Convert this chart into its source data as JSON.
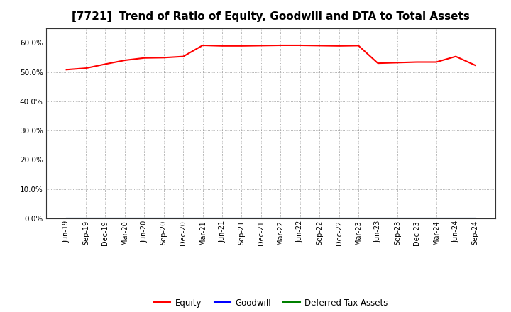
{
  "title": "[7721]  Trend of Ratio of Equity, Goodwill and DTA to Total Assets",
  "x_labels": [
    "Jun-19",
    "Sep-19",
    "Dec-19",
    "Mar-20",
    "Jun-20",
    "Sep-20",
    "Dec-20",
    "Mar-21",
    "Jun-21",
    "Sep-21",
    "Dec-21",
    "Mar-22",
    "Jun-22",
    "Sep-22",
    "Dec-22",
    "Mar-23",
    "Jun-23",
    "Sep-23",
    "Dec-23",
    "Mar-24",
    "Jun-24",
    "Sep-24"
  ],
  "equity": [
    0.508,
    0.513,
    0.527,
    0.54,
    0.548,
    0.549,
    0.553,
    0.591,
    0.589,
    0.589,
    0.59,
    0.591,
    0.591,
    0.59,
    0.589,
    0.59,
    0.53,
    0.532,
    0.534,
    0.534,
    0.553,
    0.523
  ],
  "goodwill": [
    0.0,
    0.0,
    0.0,
    0.0,
    0.0,
    0.0,
    0.0,
    0.0,
    0.0,
    0.0,
    0.0,
    0.0,
    0.0,
    0.0,
    0.0,
    0.0,
    0.0,
    0.0,
    0.0,
    0.0,
    0.0,
    0.0
  ],
  "dta": [
    0.0,
    0.0,
    0.0,
    0.0,
    0.0,
    0.0,
    0.0,
    0.0,
    0.0,
    0.0,
    0.0,
    0.0,
    0.0,
    0.0,
    0.0,
    0.0,
    0.0,
    0.0,
    0.0,
    0.0,
    0.0,
    0.0
  ],
  "equity_color": "#FF0000",
  "goodwill_color": "#0000FF",
  "dta_color": "#008000",
  "ylim": [
    0.0,
    0.65
  ],
  "yticks": [
    0.0,
    0.1,
    0.2,
    0.3,
    0.4,
    0.5,
    0.6
  ],
  "background_color": "#FFFFFF",
  "plot_bg_color": "#FFFFFF",
  "grid_color": "#999999",
  "title_fontsize": 11,
  "legend_labels": [
    "Equity",
    "Goodwill",
    "Deferred Tax Assets"
  ]
}
